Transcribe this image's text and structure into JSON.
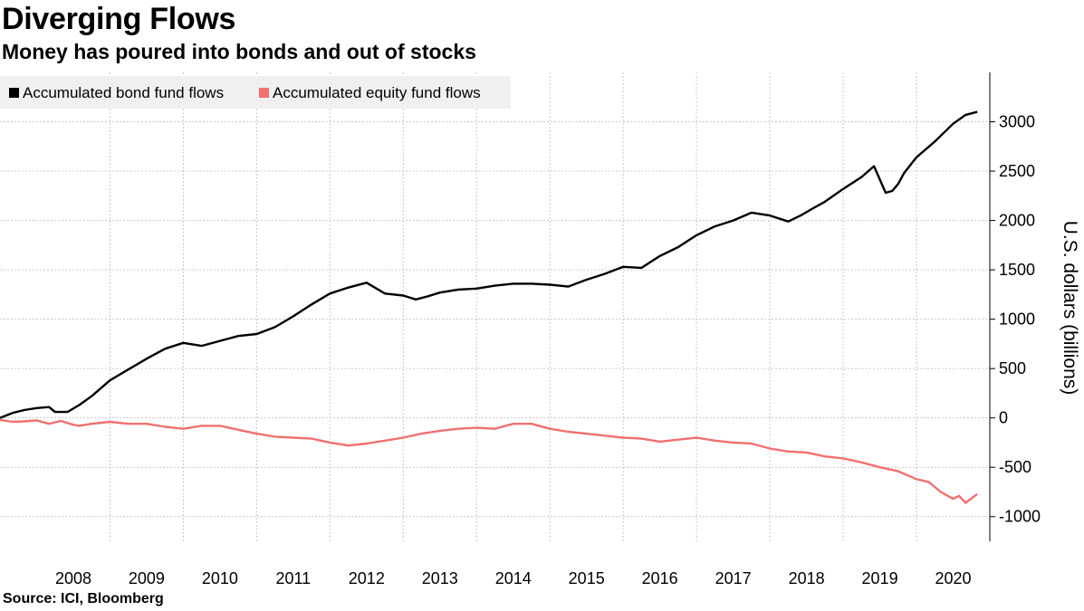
{
  "title": "Diverging Flows",
  "subtitle": "Money has poured into bonds and out of stocks",
  "source": "Source: ICI, Bloomberg",
  "chart_data": {
    "type": "line",
    "ylabel": "U.S. dollars (billions)",
    "ylim": [
      -1250,
      3500
    ],
    "yticks": [
      -1000,
      -500,
      0,
      500,
      1000,
      1500,
      2000,
      2500,
      3000
    ],
    "xlim": [
      2007.5,
      2021.0
    ],
    "xticks": [
      "2008",
      "2009",
      "2010",
      "2011",
      "2012",
      "2013",
      "2014",
      "2015",
      "2016",
      "2017",
      "2018",
      "2019",
      "2020"
    ],
    "grid": true,
    "legend_position": "top-left",
    "series": [
      {
        "name": "Accumulated bond fund flows",
        "color": "#000000",
        "x": [
          2007.5,
          2007.67,
          2007.83,
          2008.0,
          2008.17,
          2008.25,
          2008.42,
          2008.58,
          2008.75,
          2009.0,
          2009.25,
          2009.5,
          2009.75,
          2010.0,
          2010.25,
          2010.5,
          2010.75,
          2011.0,
          2011.25,
          2011.5,
          2011.75,
          2012.0,
          2012.25,
          2012.5,
          2012.75,
          2013.0,
          2013.17,
          2013.33,
          2013.5,
          2013.75,
          2014.0,
          2014.25,
          2014.5,
          2014.75,
          2015.0,
          2015.25,
          2015.5,
          2015.75,
          2016.0,
          2016.25,
          2016.5,
          2016.75,
          2017.0,
          2017.25,
          2017.5,
          2017.75,
          2018.0,
          2018.25,
          2018.42,
          2018.58,
          2018.75,
          2019.0,
          2019.25,
          2019.42,
          2019.58,
          2019.67,
          2019.75,
          2019.83,
          2020.0,
          2020.25,
          2020.5,
          2020.67,
          2020.83
        ],
        "values": [
          0,
          50,
          80,
          100,
          110,
          60,
          60,
          130,
          220,
          380,
          490,
          600,
          700,
          760,
          730,
          780,
          830,
          850,
          920,
          1030,
          1150,
          1260,
          1320,
          1370,
          1260,
          1240,
          1200,
          1230,
          1270,
          1300,
          1310,
          1340,
          1360,
          1360,
          1350,
          1330,
          1400,
          1460,
          1530,
          1520,
          1640,
          1730,
          1850,
          1940,
          2000,
          2080,
          2050,
          1990,
          2050,
          2120,
          2190,
          2320,
          2440,
          2550,
          2280,
          2300,
          2370,
          2480,
          2640,
          2800,
          2980,
          3070,
          3100
        ]
      },
      {
        "name": "Accumulated equity fund flows",
        "color": "#f07070",
        "x": [
          2007.5,
          2007.67,
          2007.83,
          2008.0,
          2008.17,
          2008.33,
          2008.5,
          2008.58,
          2008.75,
          2009.0,
          2009.25,
          2009.5,
          2009.75,
          2010.0,
          2010.25,
          2010.5,
          2010.75,
          2011.0,
          2011.25,
          2011.5,
          2011.75,
          2012.0,
          2012.25,
          2012.5,
          2012.75,
          2013.0,
          2013.25,
          2013.5,
          2013.75,
          2014.0,
          2014.25,
          2014.5,
          2014.75,
          2015.0,
          2015.25,
          2015.5,
          2015.75,
          2016.0,
          2016.25,
          2016.5,
          2016.75,
          2017.0,
          2017.25,
          2017.5,
          2017.75,
          2018.0,
          2018.25,
          2018.5,
          2018.75,
          2019.0,
          2019.25,
          2019.5,
          2019.75,
          2020.0,
          2020.17,
          2020.25,
          2020.33,
          2020.5,
          2020.58,
          2020.67,
          2020.83
        ],
        "values": [
          -20,
          -40,
          -35,
          -25,
          -60,
          -30,
          -70,
          -80,
          -60,
          -40,
          -60,
          -60,
          -90,
          -110,
          -80,
          -80,
          -120,
          -160,
          -190,
          -200,
          -210,
          -250,
          -280,
          -260,
          -230,
          -200,
          -160,
          -130,
          -110,
          -100,
          -110,
          -60,
          -60,
          -110,
          -140,
          -160,
          -180,
          -200,
          -210,
          -240,
          -220,
          -200,
          -230,
          -250,
          -260,
          -310,
          -340,
          -350,
          -390,
          -410,
          -450,
          -500,
          -540,
          -620,
          -650,
          -700,
          -750,
          -820,
          -790,
          -860,
          -770
        ]
      }
    ]
  }
}
